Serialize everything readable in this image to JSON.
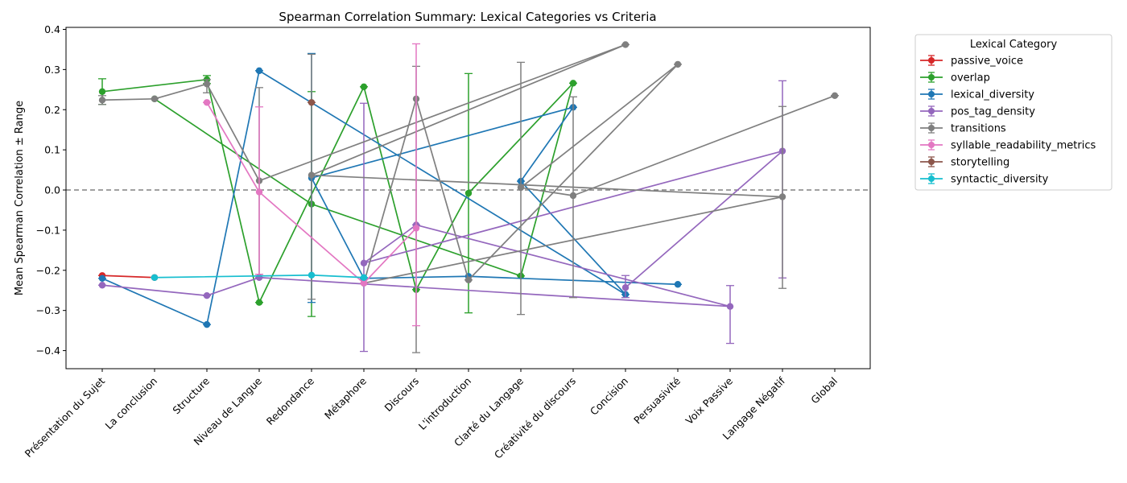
{
  "chart_data": {
    "type": "line",
    "title": "Spearman Correlation Summary: Lexical Categories vs Criteria",
    "xlabel": "",
    "ylabel": "Mean Spearman Correlation ± Range",
    "ylim": [
      -0.445,
      0.405
    ],
    "yticks": [
      -0.4,
      -0.3,
      -0.2,
      -0.1,
      0.0,
      0.1,
      0.2,
      0.3,
      0.4
    ],
    "ytick_labels": [
      "−0.4",
      "−0.3",
      "−0.2",
      "−0.1",
      "0.0",
      "0.1",
      "0.2",
      "0.3",
      "0.4"
    ],
    "reference_line": 0,
    "grid": false,
    "legend_title": "Lexical Category",
    "legend_position": "outside-upper-right",
    "categories": [
      "Présentation du Sujet",
      "La conclusion",
      "Structure",
      "Niveau de Langue",
      "Redondance",
      "Métaphore",
      "Discours",
      "L'introduction",
      "Clarté du Langage",
      "Créativité du discours",
      "Concision",
      "Persuasivité",
      "Voix Passive",
      "Langage Négatif",
      "Global"
    ],
    "series": [
      {
        "name": "passive_voice",
        "color": "#d62728",
        "points": [
          {
            "x": "Présentation du Sujet",
            "y": -0.213,
            "lo": -0.213,
            "hi": -0.213
          },
          {
            "x": "La conclusion",
            "y": -0.218,
            "lo": -0.218,
            "hi": -0.218
          }
        ]
      },
      {
        "name": "overlap",
        "color": "#2ca02c",
        "points": [
          {
            "x": "Présentation du Sujet",
            "y": 0.245,
            "lo": 0.213,
            "hi": 0.277
          },
          {
            "x": "Structure",
            "y": 0.275,
            "lo": 0.265,
            "hi": 0.285
          },
          {
            "x": "Niveau de Langue",
            "y": -0.28,
            "lo": -0.28,
            "hi": -0.28
          },
          {
            "x": "Métaphore",
            "y": 0.257,
            "lo": 0.257,
            "hi": 0.257
          },
          {
            "x": "Discours",
            "y": -0.248,
            "lo": -0.248,
            "hi": -0.248
          },
          {
            "x": "L'introduction",
            "y": -0.008,
            "lo": -0.306,
            "hi": 0.29
          },
          {
            "x": "Créativité du discours",
            "y": 0.266,
            "lo": 0.266,
            "hi": 0.266
          },
          {
            "x": "Clarté du Langage",
            "y": -0.214,
            "lo": -0.214,
            "hi": -0.214
          },
          {
            "x": "Redondance",
            "y": -0.035,
            "lo": -0.315,
            "hi": 0.245
          },
          {
            "x": "La conclusion",
            "y": 0.227,
            "lo": 0.227,
            "hi": 0.227
          }
        ]
      },
      {
        "name": "lexical_diversity",
        "color": "#1f77b4",
        "points": [
          {
            "x": "Présentation du Sujet",
            "y": -0.22,
            "lo": -0.22,
            "hi": -0.22
          },
          {
            "x": "Structure",
            "y": -0.335,
            "lo": -0.335,
            "hi": -0.335
          },
          {
            "x": "Niveau de Langue",
            "y": 0.297,
            "lo": 0.297,
            "hi": 0.297
          },
          {
            "x": "Concision",
            "y": -0.26,
            "lo": -0.26,
            "hi": -0.26
          },
          {
            "x": "Clarté du Langage",
            "y": 0.022,
            "lo": 0.022,
            "hi": 0.022
          },
          {
            "x": "Créativité du discours",
            "y": 0.206,
            "lo": 0.206,
            "hi": 0.206
          },
          {
            "x": "Redondance",
            "y": 0.03,
            "lo": -0.28,
            "hi": 0.34
          },
          {
            "x": "Métaphore",
            "y": -0.22,
            "lo": -0.22,
            "hi": -0.22
          },
          {
            "x": "L'introduction",
            "y": -0.215,
            "lo": -0.215,
            "hi": -0.215
          },
          {
            "x": "Persuasivité",
            "y": -0.235,
            "lo": -0.235,
            "hi": -0.235
          }
        ]
      },
      {
        "name": "pos_tag_density",
        "color": "#9467bd",
        "points": [
          {
            "x": "Présentation du Sujet",
            "y": -0.237,
            "lo": -0.237,
            "hi": -0.237
          },
          {
            "x": "Structure",
            "y": -0.263,
            "lo": -0.263,
            "hi": -0.263
          },
          {
            "x": "Niveau de Langue",
            "y": -0.218,
            "lo": -0.218,
            "hi": -0.218
          },
          {
            "x": "Voix Passive",
            "y": -0.29,
            "lo": -0.382,
            "hi": -0.238
          },
          {
            "x": "Discours",
            "y": -0.087,
            "lo": -0.087,
            "hi": -0.087
          },
          {
            "x": "Métaphore",
            "y": -0.182,
            "lo": -0.402,
            "hi": 0.216
          },
          {
            "x": "Langage Négatif",
            "y": 0.097,
            "lo": -0.219,
            "hi": 0.272
          },
          {
            "x": "Concision",
            "y": -0.243,
            "lo": -0.268,
            "hi": -0.213
          }
        ]
      },
      {
        "name": "transitions",
        "color": "#7f7f7f",
        "points": [
          {
            "x": "Présentation du Sujet",
            "y": 0.224,
            "lo": 0.213,
            "hi": 0.235
          },
          {
            "x": "La conclusion",
            "y": 0.227,
            "lo": 0.227,
            "hi": 0.227
          },
          {
            "x": "Structure",
            "y": 0.264,
            "lo": 0.242,
            "hi": 0.275
          },
          {
            "x": "Niveau de Langue",
            "y": 0.023,
            "lo": -0.21,
            "hi": 0.255
          },
          {
            "x": "Concision",
            "y": 0.362,
            "lo": 0.362,
            "hi": 0.362
          },
          {
            "x": "Redondance",
            "y": 0.037,
            "lo": -0.272,
            "hi": 0.338
          },
          {
            "x": "Langage Négatif",
            "y": -0.017,
            "lo": -0.245,
            "hi": 0.208
          },
          {
            "x": "Métaphore",
            "y": -0.232,
            "lo": -0.232,
            "hi": -0.232
          },
          {
            "x": "Discours",
            "y": 0.227,
            "lo": -0.405,
            "hi": 0.308
          },
          {
            "x": "L'introduction",
            "y": -0.224,
            "lo": -0.224,
            "hi": -0.224
          },
          {
            "x": "Persuasivité",
            "y": 0.313,
            "lo": 0.313,
            "hi": 0.313
          },
          {
            "x": "Clarté du Langage",
            "y": 0.006,
            "lo": -0.31,
            "hi": 0.318
          },
          {
            "x": "Créativité du discours",
            "y": -0.014,
            "lo": -0.268,
            "hi": 0.232
          },
          {
            "x": "Global",
            "y": 0.235,
            "lo": 0.235,
            "hi": 0.235
          }
        ]
      },
      {
        "name": "syllable_readability_metrics",
        "color": "#e377c2",
        "points": [
          {
            "x": "Structure",
            "y": 0.218,
            "lo": 0.218,
            "hi": 0.218
          },
          {
            "x": "Niveau de Langue",
            "y": -0.005,
            "lo": -0.21,
            "hi": 0.207
          },
          {
            "x": "Métaphore",
            "y": -0.232,
            "lo": -0.232,
            "hi": -0.232
          },
          {
            "x": "Discours",
            "y": -0.095,
            "lo": -0.338,
            "hi": 0.364
          }
        ]
      },
      {
        "name": "storytelling",
        "color": "#8c564b",
        "points": [
          {
            "x": "Redondance",
            "y": 0.218,
            "lo": 0.218,
            "hi": 0.218
          }
        ]
      },
      {
        "name": "syntactic_diversity",
        "color": "#17becf",
        "points": [
          {
            "x": "La conclusion",
            "y": -0.218,
            "lo": -0.218,
            "hi": -0.218
          },
          {
            "x": "Redondance",
            "y": -0.212,
            "lo": -0.212,
            "hi": -0.212
          },
          {
            "x": "Métaphore",
            "y": -0.218,
            "lo": -0.218,
            "hi": -0.218
          }
        ]
      }
    ]
  }
}
